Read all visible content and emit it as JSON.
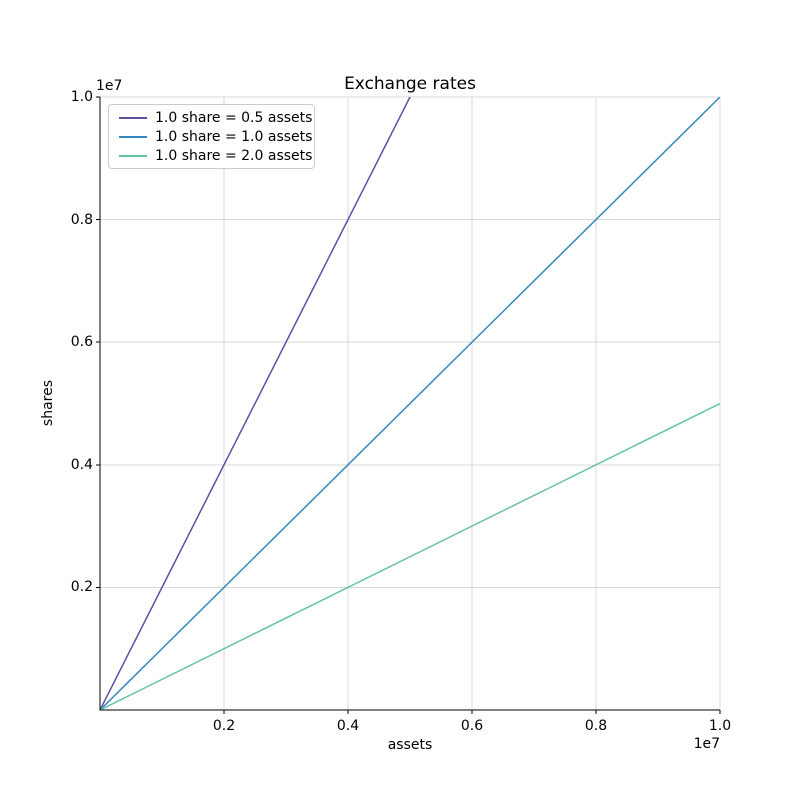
{
  "chart_data": {
    "type": "line",
    "title": "Exchange rates",
    "xlabel": "assets",
    "ylabel": "shares",
    "offset_text_x": "1e7",
    "offset_text_y": "1e7",
    "xlim": [
      0,
      10000000
    ],
    "ylim": [
      0,
      10000000
    ],
    "x_ticks": [
      2000000,
      4000000,
      6000000,
      8000000,
      10000000
    ],
    "x_tick_labels": [
      "0.2",
      "0.4",
      "0.6",
      "0.8",
      "1.0"
    ],
    "y_ticks": [
      2000000,
      4000000,
      6000000,
      8000000,
      10000000
    ],
    "y_tick_labels": [
      "0.2",
      "0.4",
      "0.6",
      "0.8",
      "1.0"
    ],
    "grid": true,
    "grid_color": "#d9d9d9",
    "spine_color": "#000000",
    "legend_position": "upper left",
    "series": [
      {
        "name": "1.0 share = 0.5 assets",
        "rate_assets_per_share": 0.5,
        "color": "#5e4fa2",
        "points": [
          [
            0,
            0
          ],
          [
            10000000,
            20000000
          ]
        ]
      },
      {
        "name": "1.0 share = 1.0 assets",
        "rate_assets_per_share": 1.0,
        "color": "#3288bd",
        "points": [
          [
            0,
            0
          ],
          [
            10000000,
            10000000
          ]
        ]
      },
      {
        "name": "1.0 share = 2.0 assets",
        "rate_assets_per_share": 2.0,
        "color": "#66c2a5",
        "points": [
          [
            0,
            0
          ],
          [
            10000000,
            5000000
          ]
        ]
      }
    ]
  }
}
